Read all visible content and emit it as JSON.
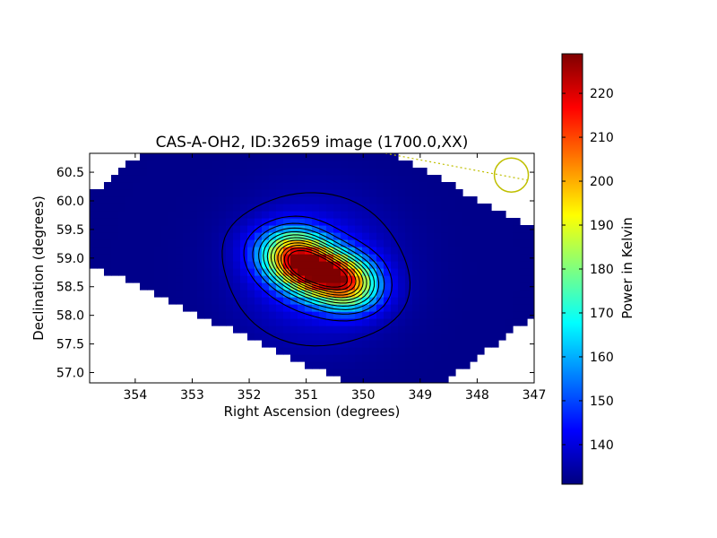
{
  "chart_data": {
    "type": "heatmap",
    "title": "CAS-A-OH2, ID:32659 image (1700.0,XX)",
    "xlabel": "Right Ascension (degrees)",
    "ylabel": "Declination (degrees)",
    "xlim": [
      354.8,
      347.0
    ],
    "ylim": [
      56.82,
      60.83
    ],
    "x_ticks": [
      354,
      353,
      352,
      351,
      350,
      349,
      348,
      347
    ],
    "y_ticks": [
      57.0,
      57.5,
      58.0,
      58.5,
      59.0,
      59.5,
      60.0,
      60.5
    ],
    "x_tick_labels": [
      "354",
      "353",
      "352",
      "351",
      "350",
      "349",
      "348",
      "347"
    ],
    "y_tick_labels": [
      "57.0",
      "57.5",
      "58.0",
      "58.5",
      "59.0",
      "59.5",
      "60.0",
      "60.5"
    ],
    "colorbar": {
      "label": "Power in Kelvin",
      "range": [
        131,
        229
      ],
      "ticks": [
        140,
        150,
        160,
        170,
        180,
        190,
        200,
        210,
        220
      ],
      "tick_labels": [
        "140",
        "150",
        "160",
        "170",
        "180",
        "190",
        "200",
        "210",
        "220"
      ],
      "colormap": "jet"
    },
    "peak": {
      "ra": 350.85,
      "dec": 58.8,
      "value": 228
    },
    "background_value": 132,
    "contour_levels": [
      135,
      143,
      151,
      159,
      167,
      175,
      183,
      191,
      199,
      207,
      215,
      223
    ],
    "beam_marker": {
      "ra": 347.4,
      "dec": 60.45,
      "color": "#bfbf00"
    },
    "grid": false
  },
  "colors": {
    "jet": [
      "#00007f",
      "#0000ff",
      "#007fff",
      "#00ffff",
      "#7fff7f",
      "#ffff00",
      "#ff7f00",
      "#ff0000",
      "#7f0000"
    ],
    "contour": "#000000",
    "beam": "#bfbf00"
  }
}
